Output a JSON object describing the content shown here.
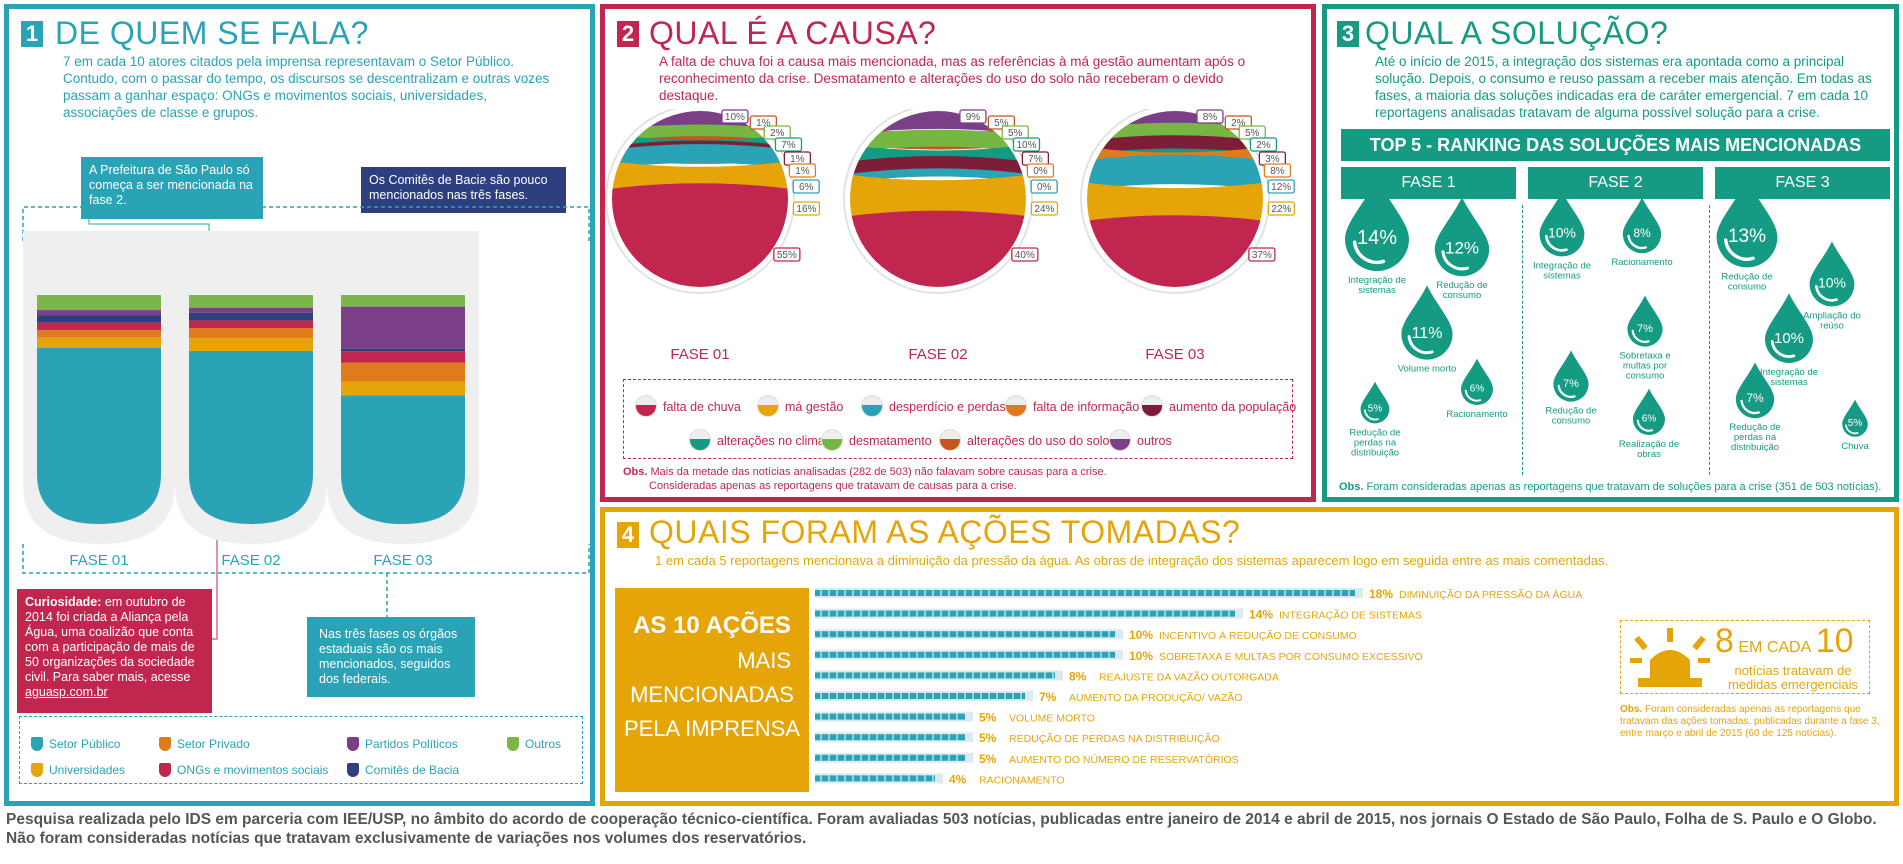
{
  "colors": {
    "teal": "#2aa3b6",
    "pink": "#c1264f",
    "green": "#159b83",
    "orange": "#e5a509",
    "purple": "#7b3f87",
    "navy": "#2d3f7f",
    "privorange": "#e07b1b",
    "lime": "#7cb548",
    "maroon": "#7e1d37",
    "olive": "#76b743",
    "rust": "#c8561c"
  },
  "p1": {
    "num": "1",
    "title": "DE QUEM SE FALA?",
    "intro": "7 em cada 10 atores citados pela imprensa representavam o Setor Público. Contudo, com o passar do tempo, os discursos se descentralizam e outras vozes passam a ganhar espaço: ONGs e movimentos sociais, universidades, associações de classe e grupos.",
    "callout_prefeitura": "A Prefeitura de São Paulo só começa a ser mencionada na fase 2.",
    "callout_comites": "Os Comitês de Bacia são pouco mencionados nas três fases.",
    "callout_curiosidade_label": "Curiosidade:",
    "callout_curiosidade": " em outubro de 2014 foi criada a Aliança pela Água, uma coalizão que conta com a participação de mais de 50 organizações da sociedade civil. Para saber mais, acesse ",
    "callout_link": "aguasp.com.br",
    "callout_estaduais": "Nas três fases os órgãos estaduais são os mais mencionados, seguidos dos federais.",
    "legend": [
      {
        "label": "Setor Público",
        "color": "#2aa3b6"
      },
      {
        "label": "Setor Privado",
        "color": "#e07b1b"
      },
      {
        "label": "Partidos Políticos",
        "color": "#7b3f87"
      },
      {
        "label": "Outros",
        "color": "#7cb548"
      },
      {
        "label": "Universidades",
        "color": "#e5a509"
      },
      {
        "label": "ONGs e movimentos sociais",
        "color": "#c1264f"
      },
      {
        "label": "Comitês de Bacia",
        "color": "#2d3f7f"
      }
    ]
  },
  "p2": {
    "num": "2",
    "title": "QUAL É A CAUSA?",
    "intro": "A falta de chuva foi a causa mais mencionada, mas as referências à má gestão aumentam após o reconhecimento da crise. Desmatamento e alterações do uso do solo não receberam o devido destaque.",
    "legend": [
      {
        "label": "falta de chuva",
        "color": "#c1264f"
      },
      {
        "label": "má gestão",
        "color": "#e5a509"
      },
      {
        "label": "desperdício e perdas",
        "color": "#2aa3b6"
      },
      {
        "label": "falta de informação",
        "color": "#e07b1b"
      },
      {
        "label": "aumento da população",
        "color": "#7e1d37"
      },
      {
        "label": "alterações no clima",
        "color": "#159b83"
      },
      {
        "label": "desmatamento",
        "color": "#76b743"
      },
      {
        "label": "alterações do uso do solo",
        "color": "#c8561c"
      },
      {
        "label": "outros",
        "color": "#7b3f87"
      }
    ],
    "obs_label": "Obs.",
    "obs": " Mais da metade das notícias analisadas (282 de 503) não falavam sobre causas para a crise.",
    "obs2": "Consideradas apenas as reportagens que tratavam de causas para a crise."
  },
  "p3": {
    "num": "3",
    "title": "QUAL A SOLUÇÃO?",
    "intro": "Até o início de 2015, a integração dos sistemas era apontada como a principal solução. Depois, o consumo e reuso passam a receber mais atenção. Em todas as fases, a maioria das soluções indicadas era de caráter emergencial. 7 em cada 10 reportagens analisadas tratavam de alguma possível solução para a crise.",
    "ranking_title": "TOP 5 - RANKING DAS SOLUÇÕES MAIS MENCIONADAS",
    "phases": [
      "FASE 1",
      "FASE 2",
      "FASE 3"
    ],
    "obs_label": "Obs.",
    "obs": " Foram consideradas apenas as reportagens que tratavam de soluções para a crise (351 de 503 notícias)."
  },
  "p4": {
    "num": "4",
    "title": "QUAIS FORAM AS AÇÕES TOMADAS?",
    "intro": "1 em cada 5 reportagens mencionava a diminuição da pressão da água. As obras de integração dos sistemas aparecem logo em seguida entre as mais comentadas.",
    "side_bold": "AS 10 AÇÕES",
    "side_rest": [
      "MAIS",
      "MENCIONADAS",
      "PELA IMPRENSA"
    ],
    "emerg_num": "8",
    "emerg_mid": "EM CADA",
    "emerg_den": "10",
    "emerg_text": "notícias tratavam de medidas emergenciais",
    "obs_label": "Obs.",
    "obs": " Foram consideradas apenas as reportagens que tratavam das ações tomadas, publicadas durante a fase 3, entre março e abril de 2015 (60 de 125 notícias)."
  },
  "footer": "Pesquisa realizada pelo IDS em parceria com IEE/USP, no âmbito do acordo de cooperação técnico-científica. Foram avaliadas 503 notícias, publicadas entre janeiro de 2014 e abril de 2015, nos jornais O Estado de São  Paulo, Folha de S. Paulo e O Globo. Não foram consideradas notícias que tratavam exclusivamente de variações nos volumes dos reservatórios.",
  "chart_data": [
    {
      "type": "bar",
      "title": "DE QUEM SE FALA?",
      "categories": [
        "FASE 01",
        "FASE 02",
        "FASE 03"
      ],
      "stacked": true,
      "series": [
        {
          "name": "Setor Público",
          "values": [
            70,
            68,
            55
          ]
        },
        {
          "name": "Universidades",
          "values": [
            4,
            5,
            6
          ]
        },
        {
          "name": "Setor Privado",
          "values": [
            3,
            4,
            8
          ]
        },
        {
          "name": "ONGs e movimentos sociais",
          "values": [
            3,
            3,
            5
          ]
        },
        {
          "name": "Comitês de Bacia",
          "values": [
            3,
            3,
            1
          ]
        },
        {
          "name": "Partidos Políticos",
          "values": [
            2,
            2,
            18
          ]
        },
        {
          "name": "Outros",
          "values": [
            6,
            5,
            5
          ]
        }
      ]
    },
    {
      "type": "pie",
      "title": "QUAL É A CAUSA?",
      "pies": [
        {
          "label": "FASE 01",
          "labels": [
            "10%",
            "1%",
            "2%",
            "7%",
            "1%",
            "1%",
            "6%",
            "16%",
            "55%"
          ],
          "values": [
            10,
            1,
            2,
            7,
            1,
            1,
            6,
            16,
            55
          ]
        },
        {
          "label": "FASE 02",
          "labels": [
            "9%",
            "5%",
            "5%",
            "10%",
            "7%",
            "0%",
            "0%",
            "24%",
            "40%"
          ],
          "values": [
            9,
            5,
            5,
            10,
            7,
            0,
            0,
            24,
            40
          ]
        },
        {
          "label": "FASE 03",
          "labels": [
            "8%",
            "2%",
            "5%",
            "2%",
            "3%",
            "8%",
            "12%",
            "22%",
            "37%"
          ],
          "values": [
            8,
            2,
            5,
            2,
            3,
            8,
            12,
            22,
            37
          ]
        }
      ]
    },
    {
      "type": "scatter",
      "title": "TOP 5 - RANKING DAS SOLUÇÕES MAIS MENCIONADAS",
      "groups": [
        {
          "phase": "FASE 1",
          "items": [
            {
              "label": "Integração de sistemas",
              "value": "14%"
            },
            {
              "label": "Redução de consumo",
              "value": "12%"
            },
            {
              "label": "Volume morto",
              "value": "11%"
            },
            {
              "label": "Racionamento",
              "value": "6%"
            },
            {
              "label": "Redução de perdas na distribuição",
              "value": "5%"
            }
          ]
        },
        {
          "phase": "FASE 2",
          "items": [
            {
              "label": "Integração de sistemas",
              "value": "10%"
            },
            {
              "label": "Racionamento",
              "value": "8%"
            },
            {
              "label": "Sobretaxa e multas por consumo",
              "value": "7%"
            },
            {
              "label": "Redução de consumo",
              "value": "7%"
            },
            {
              "label": "Realização de obras",
              "value": "6%"
            }
          ]
        },
        {
          "phase": "FASE 3",
          "items": [
            {
              "label": "Redução de consumo",
              "value": "13%"
            },
            {
              "label": "Ampliação do reúso",
              "value": "10%"
            },
            {
              "label": "Integração de sistemas",
              "value": "10%"
            },
            {
              "label": "Redução de perdas na distribuição",
              "value": "7%"
            },
            {
              "label": "Chuva",
              "value": "5%"
            }
          ]
        }
      ]
    },
    {
      "type": "bar",
      "orientation": "horizontal",
      "title": "AS 10 AÇÕES MAIS MENCIONADAS PELA IMPRENSA",
      "categories": [
        "DIMINUIÇÃO DA PRESSÃO DA ÁGUA",
        "INTEGRAÇÃO DE SISTEMAS",
        "INCENTIVO À REDUÇÃO DE CONSUMO",
        "SOBRETAXA E MULTAS POR CONSUMO EXCESSIVO",
        "REAJUSTE DA VAZÃO OUTORGADA",
        "AUMENTO DA PRODUÇÃO/ VAZÃO",
        "VOLUME MORTO",
        "REDUÇÃO DE PERDAS NA DISTRIBUIÇÃO",
        "AUMENTO DO NÚMERO DE RESERVATÓRIOS",
        "RACIONAMENTO"
      ],
      "values": [
        18,
        14,
        10,
        10,
        8,
        7,
        5,
        5,
        5,
        4
      ],
      "labels": [
        "18%",
        "14%",
        "10%",
        "10%",
        "8%",
        "7%",
        "5%",
        "5%",
        "5%",
        "4%"
      ]
    }
  ]
}
